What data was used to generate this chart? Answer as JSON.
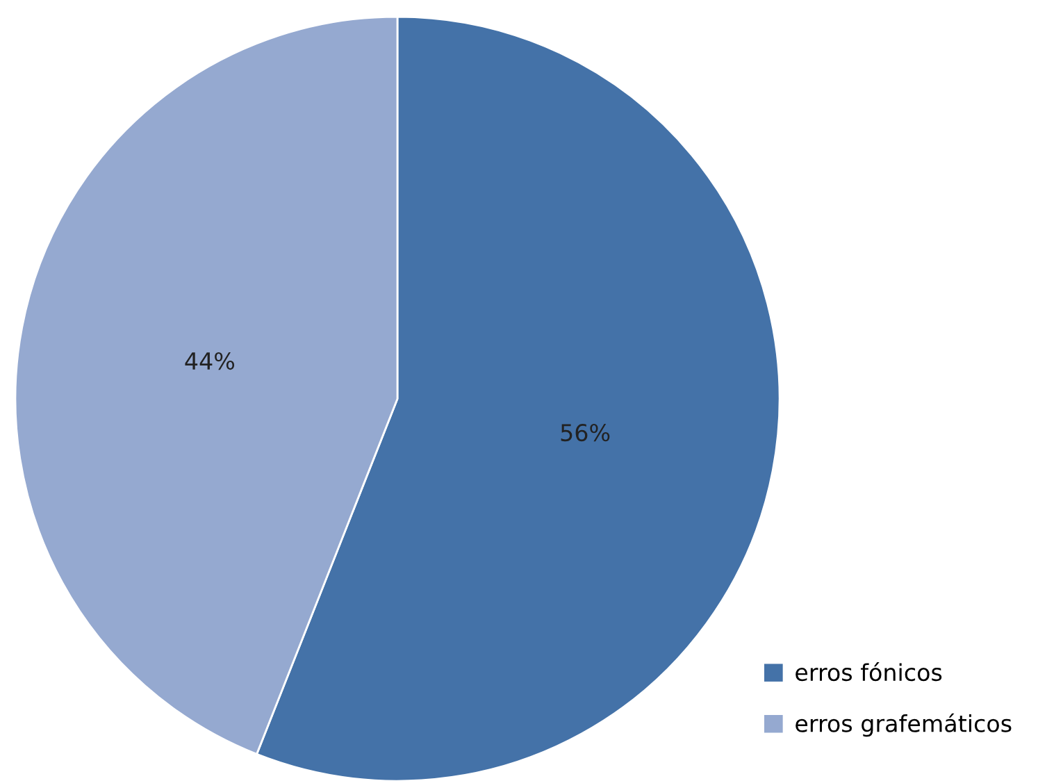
{
  "chart_data": {
    "type": "pie",
    "categories": [
      "erros fónicos",
      "erros grafemáticos"
    ],
    "values": [
      56,
      44
    ],
    "value_labels": [
      "56%",
      "44%"
    ],
    "colors": [
      "#4472a8",
      "#95a9d0"
    ],
    "legend": "bottom right"
  }
}
